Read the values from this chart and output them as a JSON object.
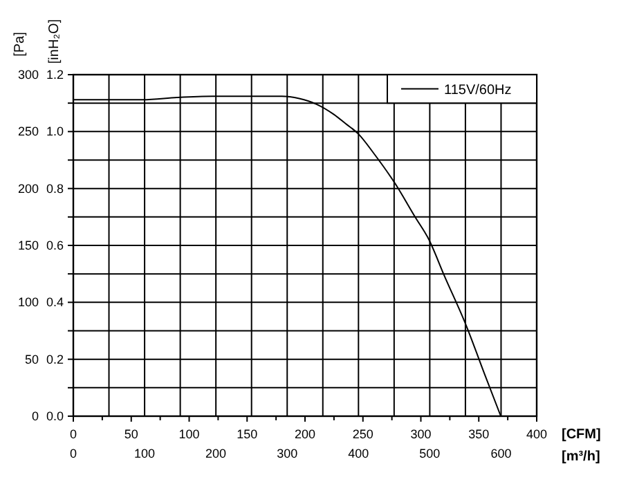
{
  "chart_data": {
    "type": "line",
    "ylabel": "[Pa]",
    "y2label": "[inH₂O]",
    "xlabel": "[CFM]",
    "x2label": "[m³/h]",
    "xlim": [
      0,
      400
    ],
    "xticks": [
      0,
      {
        "value": 25,
        "label": null
      },
      50,
      {
        "value": 75,
        "label": null
      },
      100,
      {
        "value": 125,
        "label": null
      },
      150,
      {
        "value": 175,
        "label": null
      },
      200,
      {
        "value": 225,
        "label": null
      },
      250,
      {
        "value": 275,
        "label": null
      },
      300,
      {
        "value": 325,
        "label": null
      },
      350,
      {
        "value": 375,
        "label": null
      },
      400
    ],
    "x2lim": [
      0,
      650
    ],
    "x2ticks": [
      0,
      {
        "value": 50,
        "label": null
      },
      100,
      {
        "value": 150,
        "label": null
      },
      200,
      {
        "value": 250,
        "label": null
      },
      300,
      {
        "value": 350,
        "label": null
      },
      400,
      {
        "value": 450,
        "label": null
      },
      500,
      {
        "value": 550,
        "label": null
      },
      600,
      {
        "value": 650,
        "label": null
      }
    ],
    "ylim": [
      0,
      300
    ],
    "yticks": [
      0,
      {
        "value": 25,
        "label": null
      },
      50,
      {
        "value": 75,
        "label": null
      },
      100,
      {
        "value": 125,
        "label": null
      },
      150,
      {
        "value": 175,
        "label": null
      },
      200,
      {
        "value": 225,
        "label": null
      },
      250,
      {
        "value": 275,
        "label": null
      },
      300
    ],
    "y2lim": [
      0,
      1.2
    ],
    "y2ticks": [
      {
        "value": 0,
        "label": "0.0"
      },
      0.2,
      0.4,
      0.6,
      0.8,
      {
        "value": 1,
        "label": "1.0"
      },
      1.2
    ],
    "grid": true,
    "legend": "top right",
    "marker": "none",
    "line_style": "solid",
    "series": [
      {
        "name": "115V/60Hz",
        "color": "#000000",
        "x": [
          0,
          30,
          60,
          90,
          120,
          150,
          180,
          195,
          210,
          225,
          235,
          246,
          260,
          278,
          295,
          307,
          320,
          339,
          355,
          369
        ],
        "values": [
          278,
          278,
          278,
          280,
          281,
          281,
          281,
          279,
          274,
          265,
          257,
          248,
          230,
          204,
          175,
          155,
          124,
          80,
          37,
          0
        ]
      }
    ]
  }
}
